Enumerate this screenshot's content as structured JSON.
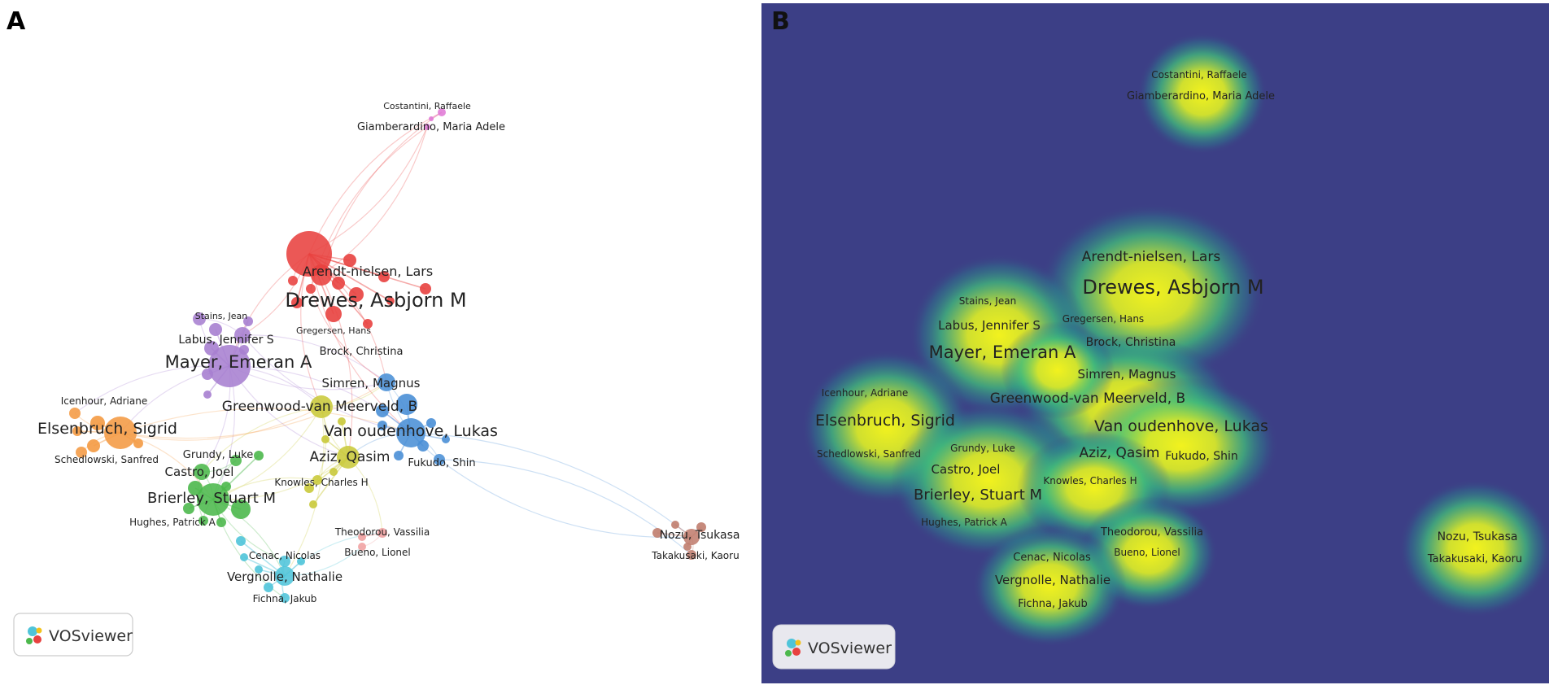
{
  "panel_a": {
    "letter": "A",
    "logo": "VOSviewer",
    "nodes": [
      {
        "id": "drewes",
        "label": "Drewes, Asbjorn M",
        "cluster": "red",
        "size": 3
      },
      {
        "id": "arendt",
        "label": "Arendt-nielsen, Lars",
        "cluster": "red",
        "size": 2
      },
      {
        "id": "gregersen",
        "label": "Gregersen, Hans",
        "cluster": "red",
        "size": 1
      },
      {
        "id": "brock",
        "label": "Brock, Christina",
        "cluster": "red",
        "size": 1
      },
      {
        "id": "mayer",
        "label": "Mayer, Emeran A",
        "cluster": "purple",
        "size": 3
      },
      {
        "id": "labus",
        "label": "Labus, Jennifer S",
        "cluster": "purple",
        "size": 2
      },
      {
        "id": "stains",
        "label": "Stains, Jean",
        "cluster": "purple",
        "size": 1
      },
      {
        "id": "elsenbruch",
        "label": "Elsenbruch, Sigrid",
        "cluster": "orange",
        "size": 3
      },
      {
        "id": "icenhour",
        "label": "Icenhour, Adriane",
        "cluster": "orange",
        "size": 1
      },
      {
        "id": "schedlowski",
        "label": "Schedlowski, Sanfred",
        "cluster": "orange",
        "size": 1
      },
      {
        "id": "simren",
        "label": "Simren, Magnus",
        "cluster": "blue",
        "size": 2
      },
      {
        "id": "vanoudenhove",
        "label": "Van oudenhove, Lukas",
        "cluster": "blue",
        "size": 3
      },
      {
        "id": "fukudo",
        "label": "Fukudo, Shin",
        "cluster": "blue",
        "size": 1
      },
      {
        "id": "greenwood",
        "label": "Greenwood-van Meerveld, B",
        "cluster": "yellow",
        "size": 2
      },
      {
        "id": "aziz",
        "label": "Aziz, Qasim",
        "cluster": "yellow",
        "size": 2
      },
      {
        "id": "knowles",
        "label": "Knowles, Charles H",
        "cluster": "yellow",
        "size": 1
      },
      {
        "id": "grundy",
        "label": "Grundy, Luke",
        "cluster": "green",
        "size": 1
      },
      {
        "id": "castro",
        "label": "Castro, Joel",
        "cluster": "green",
        "size": 2
      },
      {
        "id": "brierley",
        "label": "Brierley, Stuart M",
        "cluster": "green",
        "size": 3
      },
      {
        "id": "hughes",
        "label": "Hughes, Patrick A",
        "cluster": "green",
        "size": 1
      },
      {
        "id": "theodorou",
        "label": "Theodorou, Vassilia",
        "cluster": "pink",
        "size": 1
      },
      {
        "id": "bueno",
        "label": "Bueno, Lionel",
        "cluster": "pink",
        "size": 1
      },
      {
        "id": "cenac",
        "label": "Cenac, Nicolas",
        "cluster": "cyan",
        "size": 1
      },
      {
        "id": "vergnolle",
        "label": "Vergnolle, Nathalie",
        "cluster": "cyan",
        "size": 2
      },
      {
        "id": "fichna",
        "label": "Fichna, Jakub",
        "cluster": "cyan",
        "size": 1
      },
      {
        "id": "costantini",
        "label": "Costantini, Raffaele",
        "cluster": "magenta",
        "size": 1
      },
      {
        "id": "giamberardino",
        "label": "Giamberardino, Maria Adele",
        "cluster": "magenta",
        "size": 1
      },
      {
        "id": "nozu",
        "label": "Nozu, Tsukasa",
        "cluster": "brown",
        "size": 2
      },
      {
        "id": "takakusaki",
        "label": "Takakusaki, Kaoru",
        "cluster": "brown",
        "size": 1
      }
    ],
    "clusters": {
      "red": "#e8413f",
      "purple": "#a77fd0",
      "orange": "#f49a43",
      "blue": "#4a8fd6",
      "yellow": "#c9c93a",
      "green": "#4cb84c",
      "pink": "#f0a0a0",
      "cyan": "#4fc4d9",
      "magenta": "#e07ad6",
      "brown": "#c07d6e"
    }
  },
  "panel_b": {
    "letter": "B",
    "logo": "VOSviewer",
    "background": "#3c3f86",
    "labels": [
      {
        "id": "costantini",
        "label": "Costantini, Raffaele"
      },
      {
        "id": "giamberardino",
        "label": "Giamberardino, Maria Adele"
      },
      {
        "id": "arendt",
        "label": "Arendt-nielsen, Lars"
      },
      {
        "id": "drewes",
        "label": "Drewes, Asbjorn M"
      },
      {
        "id": "stains",
        "label": "Stains, Jean"
      },
      {
        "id": "gregersen",
        "label": "Gregersen, Hans"
      },
      {
        "id": "labus",
        "label": "Labus, Jennifer S"
      },
      {
        "id": "brock",
        "label": "Brock, Christina"
      },
      {
        "id": "mayer",
        "label": "Mayer, Emeran A"
      },
      {
        "id": "simren",
        "label": "Simren, Magnus"
      },
      {
        "id": "icenhour",
        "label": "Icenhour, Adriane"
      },
      {
        "id": "greenwood",
        "label": "Greenwood-van Meerveld, B"
      },
      {
        "id": "elsenbruch",
        "label": "Elsenbruch, Sigrid"
      },
      {
        "id": "vanoudenhove",
        "label": "Van oudenhove, Lukas"
      },
      {
        "id": "grundy",
        "label": "Grundy, Luke"
      },
      {
        "id": "aziz",
        "label": "Aziz, Qasim"
      },
      {
        "id": "fukudo",
        "label": "Fukudo, Shin"
      },
      {
        "id": "schedlowski",
        "label": "Schedlowski, Sanfred"
      },
      {
        "id": "castro",
        "label": "Castro, Joel"
      },
      {
        "id": "knowles",
        "label": "Knowles, Charles H"
      },
      {
        "id": "brierley",
        "label": "Brierley, Stuart M"
      },
      {
        "id": "hughes",
        "label": "Hughes, Patrick A"
      },
      {
        "id": "theodorou",
        "label": "Theodorou, Vassilia"
      },
      {
        "id": "nozu",
        "label": "Nozu, Tsukasa"
      },
      {
        "id": "cenac",
        "label": "Cenac, Nicolas"
      },
      {
        "id": "bueno",
        "label": "Bueno, Lionel"
      },
      {
        "id": "takakusaki",
        "label": "Takakusaki, Kaoru"
      },
      {
        "id": "vergnolle",
        "label": "Vergnolle, Nathalie"
      },
      {
        "id": "fichna",
        "label": "Fichna, Jakub"
      }
    ]
  }
}
